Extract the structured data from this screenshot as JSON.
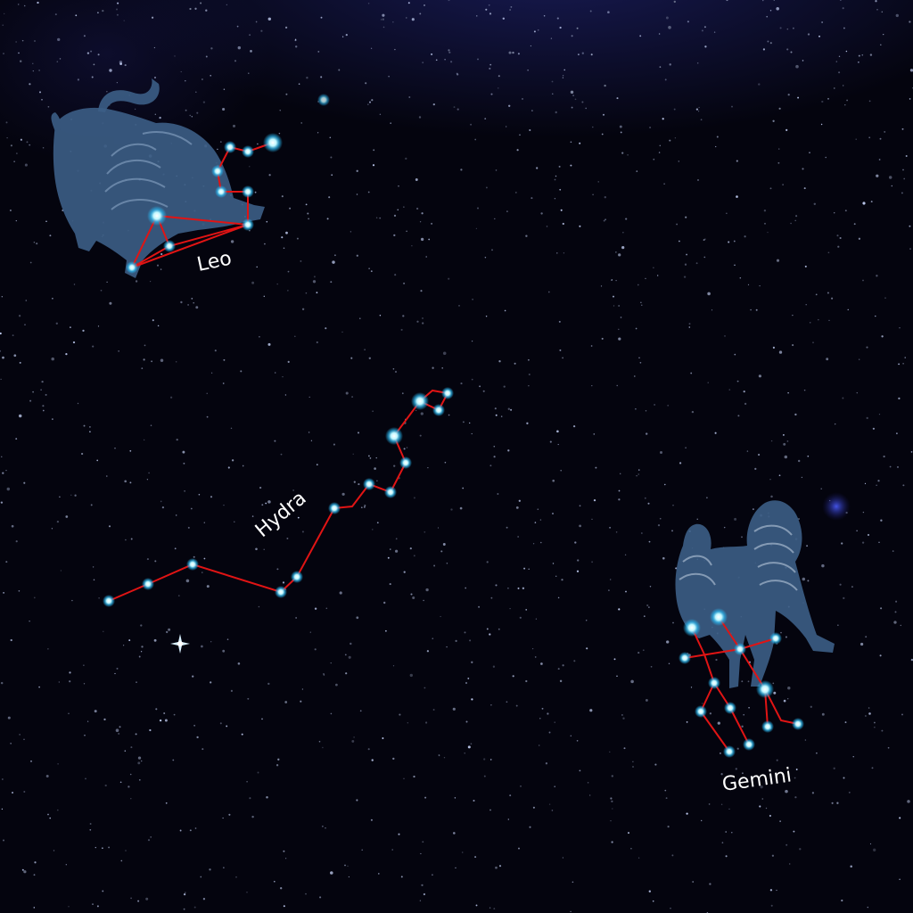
{
  "scene": "star-chart",
  "colors": {
    "background": "#04040e",
    "line": "#e01414",
    "star": "#bff7ff",
    "star_glow": "#29b7f0",
    "figure": "#3c5e86"
  },
  "constellations": [
    {
      "id": "leo",
      "label": "Leo",
      "figure": "lion"
    },
    {
      "id": "hydra",
      "label": "Hydra",
      "figure": "none"
    },
    {
      "id": "gemini",
      "label": "Gemini",
      "figure": "twins"
    }
  ]
}
